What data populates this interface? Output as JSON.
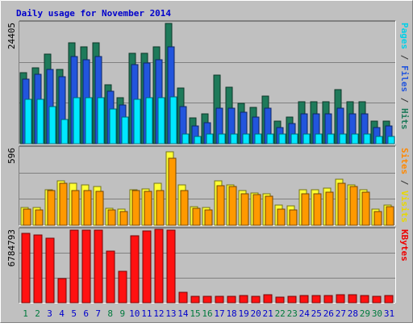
{
  "chart_data": {
    "type": "bar",
    "title": "Daily usage for November 2014",
    "categories": [
      "1",
      "2",
      "3",
      "4",
      "5",
      "6",
      "7",
      "8",
      "9",
      "10",
      "11",
      "12",
      "13",
      "14",
      "15",
      "16",
      "17",
      "18",
      "19",
      "20",
      "21",
      "22",
      "23",
      "24",
      "25",
      "26",
      "27",
      "28",
      "29",
      "30",
      "31"
    ],
    "weekend_days": [
      "1",
      "2",
      "8",
      "9",
      "15",
      "16",
      "22",
      "23",
      "29",
      "30"
    ],
    "panels": [
      {
        "name": "hits-files-pages",
        "ymax_label": "24405",
        "ylim": [
          0,
          24405
        ],
        "side_labels": [
          {
            "text": "Pages",
            "color": "#00d0e8"
          },
          {
            "text": " / ",
            "color": "#333333"
          },
          {
            "text": "Files",
            "color": "#2255dd"
          },
          {
            "text": " / ",
            "color": "#333333"
          },
          {
            "text": "Hits",
            "color": "#1e7a5a"
          }
        ],
        "series": [
          {
            "name": "Hits",
            "color": "#1e7a5a",
            "values": [
              14300,
              15300,
              18100,
              15000,
              20300,
              19500,
              20300,
              11800,
              9300,
              18300,
              18300,
              19500,
              24200,
              11200,
              5200,
              6000,
              13800,
              11400,
              8100,
              7400,
              9600,
              4600,
              5300,
              8500,
              8500,
              8500,
              10900,
              8500,
              8500,
              4600,
              4600
            ]
          },
          {
            "name": "Files",
            "color": "#2255dd",
            "values": [
              13000,
              14000,
              15000,
              13500,
              17500,
              17000,
              17500,
              10500,
              7800,
              16000,
              16300,
              16900,
              19500,
              7500,
              3600,
              4200,
              7200,
              7200,
              6300,
              5400,
              7200,
              3300,
              4100,
              6100,
              6100,
              6100,
              7200,
              6100,
              6100,
              3300,
              3600
            ]
          },
          {
            "name": "Pages",
            "color": "#00e8ff",
            "values": [
              9000,
              9000,
              7500,
              4900,
              9300,
              9200,
              9300,
              7000,
              5300,
              8900,
              9300,
              9300,
              9500,
              1900,
              1500,
              1900,
              1900,
              1900,
              1900,
              1900,
              1900,
              1900,
              1900,
              1900,
              1900,
              1900,
              1900,
              1900,
              1900,
              1500,
              1500
            ]
          }
        ]
      },
      {
        "name": "visits-sites",
        "ymax_label": "596",
        "ylim": [
          0,
          596
        ],
        "side_labels": [
          {
            "text": "Sites",
            "color": "#ff8800"
          },
          {
            "text": " / ",
            "color": "#333333"
          },
          {
            "text": "Visits",
            "color": "#e8d800"
          }
        ],
        "series": [
          {
            "name": "Visits",
            "color": "#ffff33",
            "values": [
              136,
              136,
              276,
              342,
              324,
              309,
              297,
              132,
              125,
              276,
              280,
              320,
              568,
              309,
              144,
              136,
              344,
              312,
              267,
              251,
              243,
              153,
              148,
              276,
              276,
              287,
              353,
              312,
              276,
              122,
              158
            ]
          },
          {
            "name": "Sites",
            "color": "#ff9900",
            "values": [
              125,
              115,
              265,
              323,
              265,
              265,
              259,
              115,
              108,
              265,
              259,
              265,
              518,
              265,
              132,
              115,
              305,
              296,
              243,
              235,
              223,
              125,
              115,
              243,
              243,
              253,
              323,
              296,
              253,
              108,
              142
            ]
          }
        ]
      },
      {
        "name": "kbytes",
        "ymax_label": "6784793",
        "ylim": [
          0,
          6784793
        ],
        "side_labels": [
          {
            "text": "KBytes",
            "color": "#ee0000"
          }
        ],
        "series": [
          {
            "name": "KBytes",
            "color": "#ff1111",
            "values": [
              6400000,
              6300000,
              6000000,
              2200000,
              6700000,
              6700000,
              6700000,
              4800000,
              2900000,
              6200000,
              6600000,
              6750000,
              6700000,
              950000,
              600000,
              600000,
              600000,
              600000,
              650000,
              600000,
              750000,
              550000,
              600000,
              650000,
              650000,
              650000,
              750000,
              750000,
              650000,
              600000,
              650000
            ]
          }
        ]
      }
    ],
    "grid": true,
    "legend": "right side, vertical"
  },
  "colors": {
    "background": "#c0c0c0",
    "frame_light": "#ffffff",
    "frame_dark": "#808080",
    "gridline": "#808080",
    "title_color": "#0000cc",
    "weekday_label": "#0000cc",
    "weekend_label": "#007a3d"
  }
}
